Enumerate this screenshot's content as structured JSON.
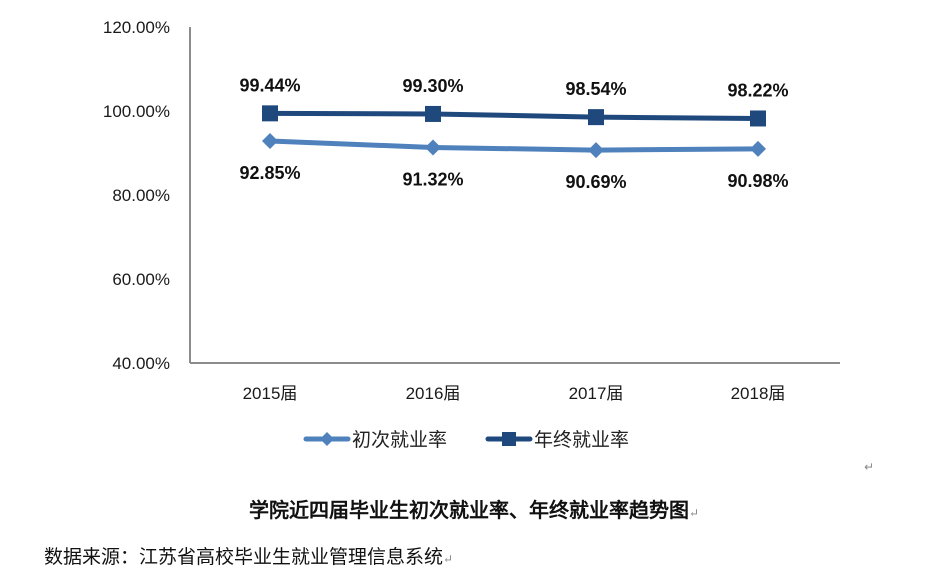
{
  "chart_data": {
    "type": "line",
    "title": "学院近四届毕业生初次就业率、年终就业率趋势图",
    "xlabel": "",
    "ylabel": "",
    "categories": [
      "2015届",
      "2016届",
      "2017届",
      "2018届"
    ],
    "series": [
      {
        "name": "初次就业率",
        "values": [
          92.85,
          91.32,
          90.69,
          90.98
        ],
        "labels": [
          "92.85%",
          "91.32%",
          "90.69%",
          "90.98%"
        ],
        "color": "#4F81BD",
        "marker": "diamond"
      },
      {
        "name": "年终就业率",
        "values": [
          99.44,
          99.3,
          98.54,
          98.22
        ],
        "labels": [
          "99.44%",
          "99.30%",
          "98.54%",
          "98.22%"
        ],
        "color": "#1F497D",
        "marker": "square"
      }
    ],
    "ylim": [
      40,
      120
    ],
    "yticks": [
      "40.00%",
      "60.00%",
      "80.00%",
      "100.00%",
      "120.00%"
    ],
    "grid": false,
    "legend_position": "bottom"
  },
  "caption": "学院近四届毕业生初次就业率、年终就业率趋势图",
  "source": "数据来源：江苏省高校毕业生就业管理信息系统",
  "marks": {
    "return": "↵"
  }
}
